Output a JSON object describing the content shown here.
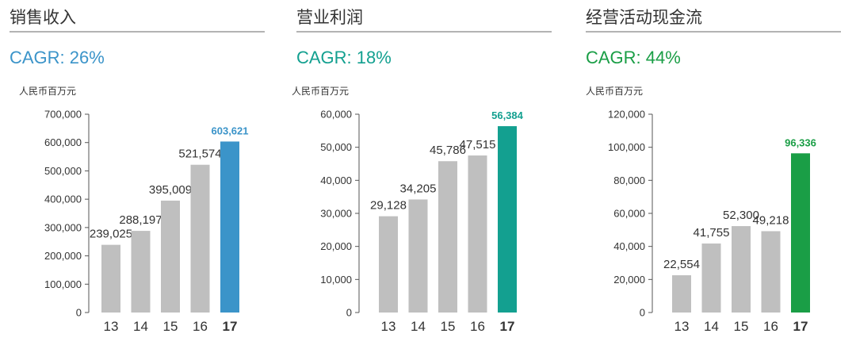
{
  "colors": {
    "gray_bar": "#bfbfbf",
    "sales_accent": "#3b94c9",
    "profit_accent": "#13a090",
    "cash_accent": "#1a9e46",
    "axis_text": "#333333",
    "title_text": "#333333"
  },
  "panels": [
    {
      "title": "销售收入",
      "cagr": "CAGR: 26%",
      "unit": "人民币百万元",
      "accent": "#3b94c9"
    },
    {
      "title": "营业利润",
      "cagr": "CAGR: 18%",
      "unit": "人民币百万元",
      "accent": "#13a090"
    },
    {
      "title": "经营活动现金流",
      "cagr": "CAGR: 44%",
      "unit": "人民币百万元",
      "accent": "#1a9e46"
    }
  ],
  "chart_data": [
    {
      "type": "bar",
      "title": "销售收入",
      "ylabel": "人民币百万元",
      "categories": [
        "13",
        "14",
        "15",
        "16",
        "17"
      ],
      "values": [
        239025,
        288197,
        395009,
        521574,
        603621
      ],
      "value_labels": [
        "239,025",
        "288,197",
        "395,009",
        "521,574",
        "603,621"
      ],
      "ylim": [
        0,
        700000
      ],
      "yticks": [
        0,
        100000,
        200000,
        300000,
        400000,
        500000,
        600000,
        700000
      ],
      "ytick_labels": [
        "0",
        "100,000",
        "200,000",
        "300,000",
        "400,000",
        "500,000",
        "600,000",
        "700,000"
      ],
      "highlight_index": 4,
      "highlight_color": "#3b94c9",
      "grid": false
    },
    {
      "type": "bar",
      "title": "营业利润",
      "ylabel": "人民币百万元",
      "categories": [
        "13",
        "14",
        "15",
        "16",
        "17"
      ],
      "values": [
        29128,
        34205,
        45786,
        47515,
        56384
      ],
      "value_labels": [
        "29,128",
        "34,205",
        "45,786",
        "47,515",
        "56,384"
      ],
      "ylim": [
        0,
        60000
      ],
      "yticks": [
        0,
        10000,
        20000,
        30000,
        40000,
        50000,
        60000
      ],
      "ytick_labels": [
        "0",
        "10,000",
        "20,000",
        "30,000",
        "40,000",
        "50,000",
        "60,000"
      ],
      "highlight_index": 4,
      "highlight_color": "#13a090",
      "grid": false
    },
    {
      "type": "bar",
      "title": "经营活动现金流",
      "ylabel": "人民币百万元",
      "categories": [
        "13",
        "14",
        "15",
        "16",
        "17"
      ],
      "values": [
        22554,
        41755,
        52300,
        49218,
        96336
      ],
      "value_labels": [
        "22,554",
        "41,755",
        "52,300",
        "49,218",
        "96,336"
      ],
      "ylim": [
        0,
        120000
      ],
      "yticks": [
        0,
        20000,
        40000,
        60000,
        80000,
        100000,
        120000
      ],
      "ytick_labels": [
        "0",
        "20,000",
        "40,000",
        "60,000",
        "80,000",
        "100,000",
        "120,000"
      ],
      "highlight_index": 4,
      "highlight_color": "#1a9e46",
      "grid": false
    }
  ]
}
